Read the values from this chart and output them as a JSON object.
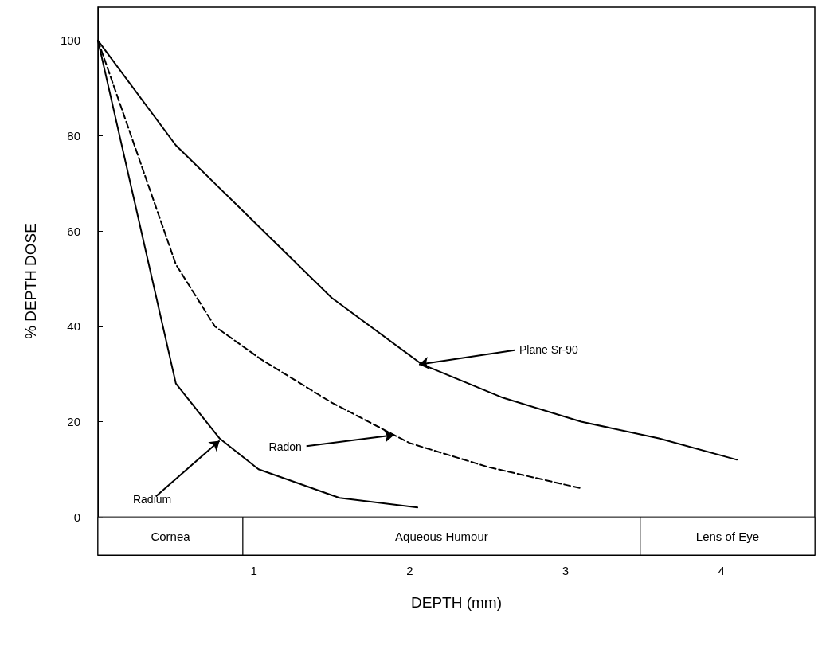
{
  "chart_data": {
    "type": "line",
    "xlabel": "DEPTH (mm)",
    "ylabel": "% DEPTH DOSE",
    "xlim": [
      0,
      4.6
    ],
    "xticks": [
      1,
      2,
      3,
      4
    ],
    "ylim": [
      -8,
      107
    ],
    "yticks": [
      0,
      20,
      40,
      60,
      80,
      100
    ],
    "grid": false,
    "marker": "none",
    "series": [
      {
        "color": "#000000",
        "line_style": "solid",
        "x": [
          0,
          0.5,
          0.75,
          1.0,
          1.5,
          2.08,
          2.6,
          3.1,
          3.6,
          4.1
        ],
        "values": [
          100,
          78,
          70,
          62,
          46,
          32,
          25,
          20,
          16.5,
          12
        ]
      },
      {
        "color": "#000000",
        "line_style": "dashed",
        "x": [
          0,
          0.5,
          0.75,
          1.05,
          1.5,
          2.0,
          2.5,
          3.1
        ],
        "values": [
          100,
          53,
          40,
          33,
          24,
          15.5,
          10.5,
          6
        ]
      },
      {
        "color": "#000000",
        "line_style": "solid",
        "x": [
          0,
          0.5,
          0.78,
          1.03,
          1.55,
          2.05
        ],
        "values": [
          100,
          28,
          16.5,
          10,
          4,
          2
        ]
      }
    ],
    "annotations": [
      {
        "text": "Plane Sr-90",
        "x": 2.06,
        "y": 32
      },
      {
        "text": "Radon",
        "x": 1.9,
        "y": 17.2
      },
      {
        "text": "Radium",
        "x": 0.78,
        "y": 16
      }
    ],
    "bands": [
      {
        "axis": "x",
        "from": 0,
        "to": 0.93,
        "label": "Cornea"
      },
      {
        "axis": "x",
        "from": 0.93,
        "to": 3.48,
        "label": "Aqueous Humour"
      },
      {
        "axis": "x",
        "from": 3.48,
        "to": 4.6,
        "label": "Lens of Eye"
      }
    ]
  }
}
